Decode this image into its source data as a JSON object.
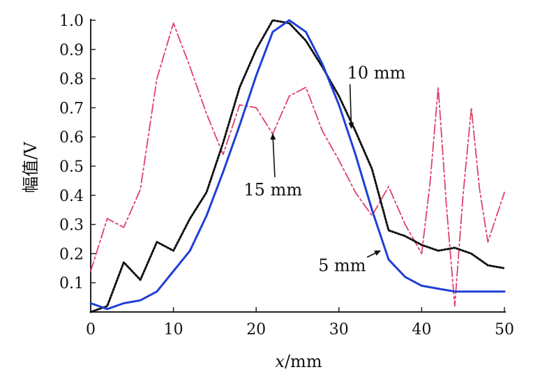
{
  "chart_data": {
    "type": "line",
    "xlabel_var": "x",
    "xlabel_unit": "/mm",
    "ylabel": "幅值/V",
    "xlim": [
      0,
      50
    ],
    "ylim": [
      0,
      1.0
    ],
    "xticks": [
      0,
      10,
      20,
      30,
      40,
      50
    ],
    "yticks": [
      0.1,
      0.2,
      0.3,
      0.4,
      0.5,
      0.6,
      0.7,
      0.8,
      0.9,
      1.0
    ],
    "grid": false,
    "series": [
      {
        "name": "5 mm",
        "color": "#1f3fd6",
        "style": "solid",
        "x": [
          0,
          2,
          4,
          6,
          8,
          10,
          12,
          14,
          16,
          18,
          20,
          22,
          24,
          26,
          28,
          30,
          32,
          34,
          36,
          38,
          40,
          42,
          44,
          46,
          48,
          50
        ],
        "y": [
          0.03,
          0.01,
          0.03,
          0.04,
          0.07,
          0.14,
          0.21,
          0.33,
          0.48,
          0.64,
          0.81,
          0.96,
          1.0,
          0.96,
          0.85,
          0.71,
          0.54,
          0.35,
          0.18,
          0.12,
          0.09,
          0.08,
          0.07,
          0.07,
          0.07,
          0.07
        ]
      },
      {
        "name": "10 mm",
        "color": "#111111",
        "style": "dotted",
        "x": [
          0,
          2,
          4,
          6,
          8,
          10,
          12,
          14,
          16,
          18,
          20,
          22,
          24,
          26,
          28,
          30,
          32,
          34,
          36,
          38,
          40,
          42,
          44,
          46,
          48,
          50
        ],
        "y": [
          0.0,
          0.02,
          0.17,
          0.11,
          0.24,
          0.21,
          0.32,
          0.41,
          0.58,
          0.77,
          0.9,
          1.0,
          0.99,
          0.93,
          0.84,
          0.74,
          0.62,
          0.49,
          0.28,
          0.26,
          0.23,
          0.21,
          0.22,
          0.2,
          0.16,
          0.15
        ]
      },
      {
        "name": "15 mm",
        "color": "#e0406a",
        "style": "dashdot",
        "x": [
          0,
          2,
          4,
          6,
          8,
          10,
          12,
          14,
          16,
          18,
          20,
          22,
          24,
          26,
          28,
          30,
          32,
          34,
          36,
          38,
          40,
          41,
          42,
          43,
          44,
          45,
          46,
          47,
          48,
          50
        ],
        "y": [
          0.14,
          0.32,
          0.29,
          0.42,
          0.8,
          0.99,
          0.84,
          0.68,
          0.54,
          0.71,
          0.7,
          0.61,
          0.74,
          0.77,
          0.62,
          0.52,
          0.41,
          0.33,
          0.43,
          0.3,
          0.2,
          0.44,
          0.77,
          0.36,
          0.02,
          0.4,
          0.7,
          0.42,
          0.24,
          0.41
        ]
      }
    ],
    "annotations": [
      {
        "text": "10 mm",
        "target_x": 31.5,
        "target_y": 0.63,
        "label_x": 31.0,
        "label_y": 0.8
      },
      {
        "text": "15 mm",
        "target_x": 22.0,
        "target_y": 0.61,
        "label_x": 18.5,
        "label_y": 0.4
      },
      {
        "text": "5 mm",
        "target_x": 35.0,
        "target_y": 0.21,
        "label_x": 27.5,
        "label_y": 0.14
      }
    ]
  }
}
